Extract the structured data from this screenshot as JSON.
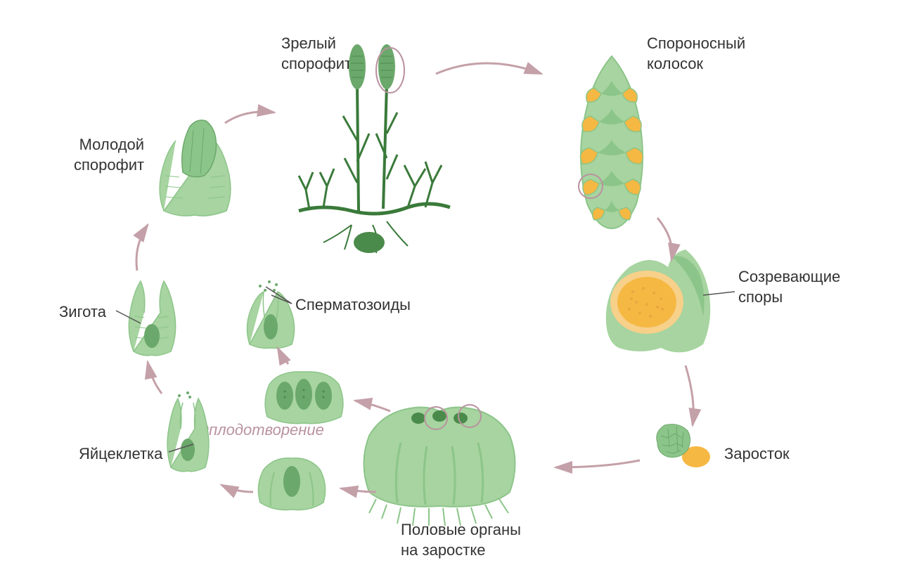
{
  "diagram": {
    "type": "lifecycle",
    "background_color": "#ffffff",
    "text_color": "#333333",
    "italic_color": "#b9929f",
    "arrow_color": "#c4a0a8",
    "leader_color": "#555555",
    "font_size": 22,
    "colors": {
      "green_light": "#a7d4a0",
      "green_mid": "#8cc589",
      "green_dark": "#3a7a3a",
      "green_cell": "#9dcb95",
      "orange": "#f5b843",
      "orange_light": "#f7d08a",
      "spore_fill": "#e8a83f"
    },
    "labels": {
      "mature_sporophyte": "Зрелый\nспорофит",
      "strobilus": "Спороносный\nколосок",
      "maturing_spores": "Созревающие\nспоры",
      "prothallus": "Заросток",
      "sex_organs": "Половые органы\nна заростке",
      "fertilization": "Оплодотворение",
      "egg": "Яйцеклетка",
      "sperm": "Сперматозоиды",
      "zygote": "Зигота",
      "young_sporophyte": "Молодой\nспорофит"
    }
  }
}
